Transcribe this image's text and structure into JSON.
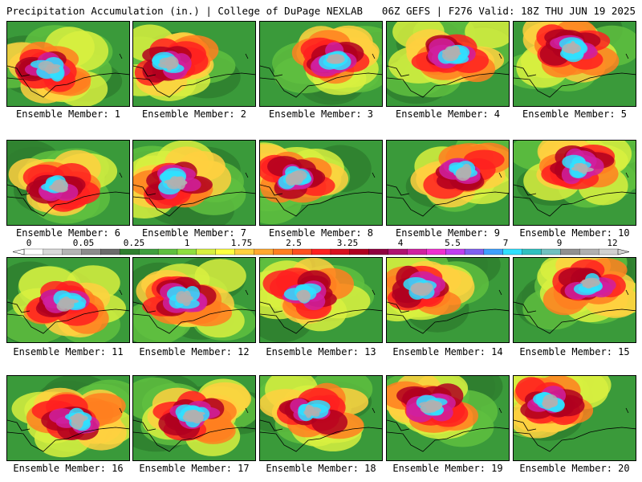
{
  "header": {
    "left": "Precipitation Accumulation (in.) | College of DuPage NEXLAB",
    "right": "06Z GEFS | F276 Valid: 18Z THU JUN 19 2025"
  },
  "members": [
    {
      "label": "Ensemble Member: 1"
    },
    {
      "label": "Ensemble Member: 2"
    },
    {
      "label": "Ensemble Member: 3"
    },
    {
      "label": "Ensemble Member: 4"
    },
    {
      "label": "Ensemble Member: 5"
    },
    {
      "label": "Ensemble Member: 6"
    },
    {
      "label": "Ensemble Member: 7"
    },
    {
      "label": "Ensemble Member: 8"
    },
    {
      "label": "Ensemble Member: 9"
    },
    {
      "label": "Ensemble Member: 10"
    },
    {
      "label": "Ensemble Member: 11"
    },
    {
      "label": "Ensemble Member: 12"
    },
    {
      "label": "Ensemble Member: 13"
    },
    {
      "label": "Ensemble Member: 14"
    },
    {
      "label": "Ensemble Member: 15"
    },
    {
      "label": "Ensemble Member: 16"
    },
    {
      "label": "Ensemble Member: 17"
    },
    {
      "label": "Ensemble Member: 18"
    },
    {
      "label": "Ensemble Member: 19"
    },
    {
      "label": "Ensemble Member: 20"
    }
  ],
  "colorbar": {
    "labels": [
      "0",
      "0.05",
      "0.25",
      "1",
      "1.75",
      "2.5",
      "3.25",
      "4",
      "5.5",
      "7",
      "9",
      "12"
    ],
    "colors": [
      "#ffffff",
      "#d8d8d8",
      "#b4b4b4",
      "#8c8c8c",
      "#6b6b6b",
      "#2f7f2f",
      "#3f9f3f",
      "#5fbf3f",
      "#8fdf3f",
      "#d8f040",
      "#ffff40",
      "#ffd040",
      "#ffa830",
      "#ff7f20",
      "#ff5020",
      "#ff2020",
      "#d81020",
      "#b00020",
      "#900040",
      "#b01070",
      "#d020a0",
      "#f030d0",
      "#c040f0",
      "#8060f0",
      "#40a0ff",
      "#30e0ff",
      "#30c0c0",
      "#70c0c0",
      "#909090",
      "#b0b0b0",
      "#d0d0d0"
    ]
  }
}
